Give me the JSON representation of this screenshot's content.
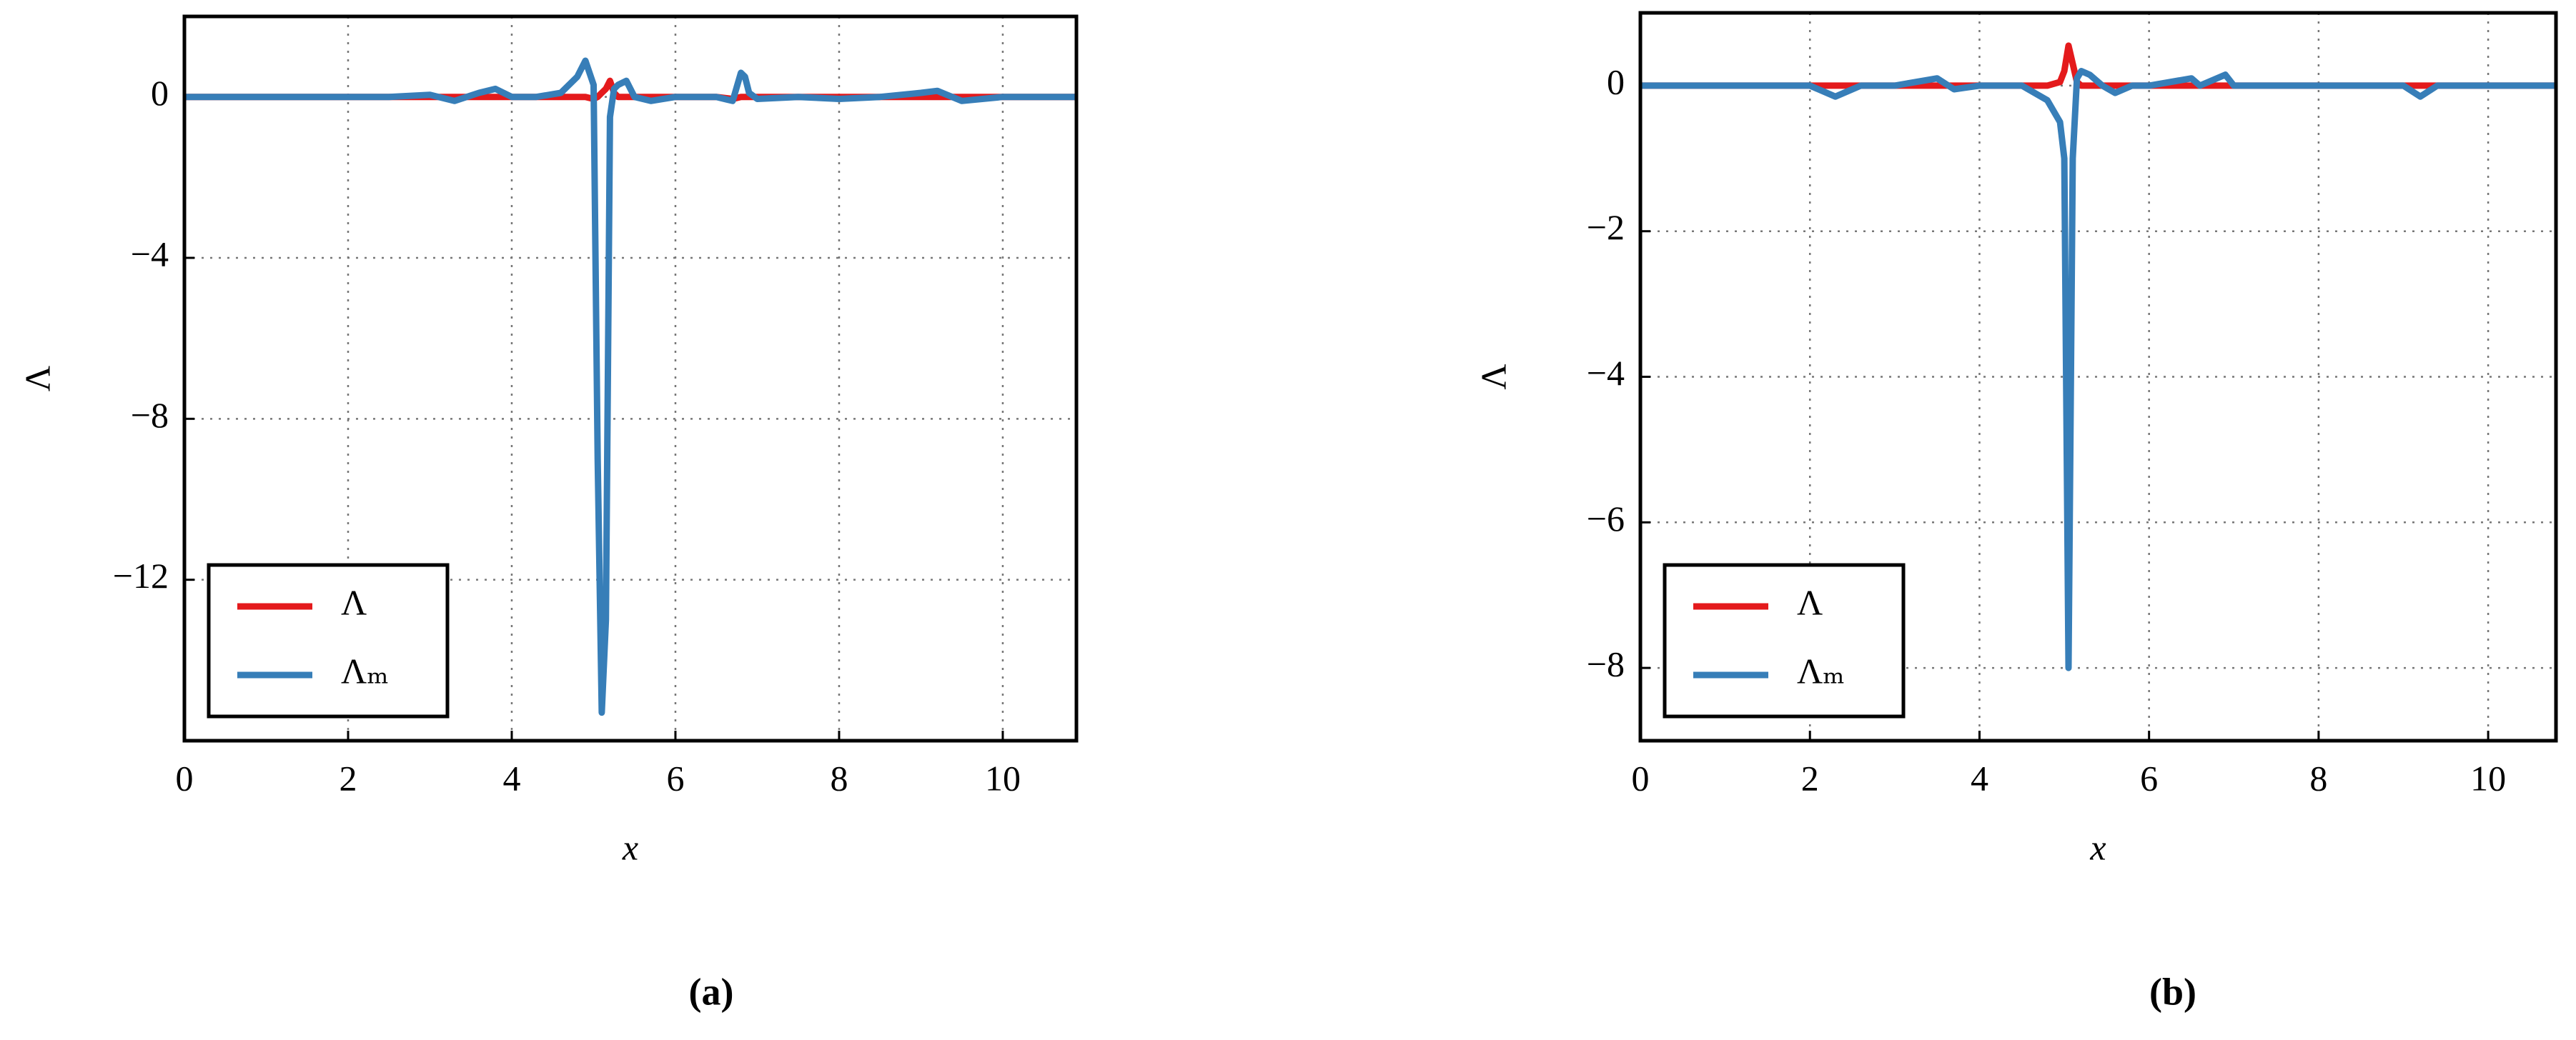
{
  "chart_data": [
    {
      "type": "line",
      "caption": "(a)",
      "xlabel": "x",
      "ylabel": "Λ",
      "x": [
        0,
        0.5,
        1,
        1.5,
        2,
        2.5,
        3,
        3.3,
        3.6,
        3.8,
        4,
        4.3,
        4.6,
        4.8,
        4.9,
        5.0,
        5.05,
        5.1,
        5.15,
        5.2,
        5.25,
        5.3,
        5.4,
        5.5,
        5.7,
        6,
        6.5,
        6.7,
        6.8,
        6.85,
        6.9,
        7,
        7.5,
        8,
        8.5,
        9,
        9.2,
        9.5,
        10,
        10.9
      ],
      "series": [
        {
          "name": "Λ",
          "color": "#e41a1c",
          "values": [
            0,
            0,
            0,
            0,
            0,
            0,
            0,
            0,
            0,
            0,
            0,
            0,
            0,
            0,
            0,
            -0.05,
            0,
            0.1,
            0.2,
            0.4,
            0.1,
            0,
            0,
            0,
            0,
            0,
            0,
            -0.05,
            0,
            0,
            0,
            0,
            0,
            0,
            0,
            0,
            0,
            0,
            0,
            0
          ]
        },
        {
          "name": "Λₘ",
          "color": "#377eb8",
          "values": [
            0,
            0,
            0,
            0,
            0,
            0,
            0.05,
            -0.1,
            0.1,
            0.2,
            0,
            0,
            0.1,
            0.5,
            0.9,
            0.3,
            -9,
            -15.3,
            -13,
            -0.5,
            0.2,
            0.3,
            0.4,
            0,
            -0.1,
            0,
            0,
            -0.1,
            0.6,
            0.5,
            0.1,
            -0.05,
            0,
            -0.05,
            0,
            0.1,
            0.15,
            -0.1,
            0,
            0
          ]
        }
      ],
      "xlim": [
        0,
        10.9
      ],
      "xticks": [
        0,
        2,
        4,
        6,
        8,
        10
      ],
      "ylim": [
        -16,
        2
      ],
      "yticks": [
        {
          "value": -12,
          "label": "−12"
        },
        {
          "value": -8,
          "label": "−8"
        },
        {
          "value": -4,
          "label": "−4"
        },
        0
      ],
      "grid": true,
      "legend": "lower left"
    },
    {
      "type": "line",
      "caption": "(b)",
      "xlabel": "x",
      "ylabel": "Λ",
      "x": [
        0,
        0.5,
        1,
        1.5,
        2,
        2.3,
        2.6,
        3,
        3.5,
        3.7,
        4,
        4.5,
        4.8,
        4.95,
        5.0,
        5.05,
        5.1,
        5.15,
        5.2,
        5.3,
        5.45,
        5.6,
        5.8,
        6,
        6.5,
        6.6,
        6.9,
        7,
        7.5,
        8,
        8.5,
        9,
        9.2,
        9.4,
        10,
        10.8
      ],
      "series": [
        {
          "name": "Λ",
          "color": "#e41a1c",
          "values": [
            0,
            0,
            0,
            0,
            0,
            0,
            0,
            0,
            0,
            0,
            0,
            0,
            0,
            0.05,
            0.2,
            0.55,
            0.3,
            0.05,
            0,
            0,
            0,
            0,
            0,
            0,
            0,
            0,
            0,
            0,
            0,
            0,
            0,
            0,
            0,
            0,
            0,
            0
          ]
        },
        {
          "name": "Λₘ",
          "color": "#377eb8",
          "values": [
            0,
            0,
            0,
            0,
            0,
            -0.15,
            0,
            0,
            0.1,
            -0.05,
            0,
            0,
            -0.2,
            -0.5,
            -1,
            -8,
            -1,
            0.1,
            0.2,
            0.15,
            0,
            -0.1,
            0,
            0,
            0.1,
            0,
            0.15,
            0,
            0,
            0,
            0,
            0,
            -0.15,
            0,
            0,
            0
          ]
        }
      ],
      "xlim": [
        0,
        10.8
      ],
      "xticks": [
        0,
        2,
        4,
        6,
        8,
        10
      ],
      "ylim": [
        -9,
        1
      ],
      "yticks": [
        {
          "value": -8,
          "label": "−8"
        },
        {
          "value": -6,
          "label": "−6"
        },
        {
          "value": -4,
          "label": "−4"
        },
        {
          "value": -2,
          "label": "−2"
        },
        0
      ],
      "grid": true,
      "legend": "lower left"
    }
  ]
}
